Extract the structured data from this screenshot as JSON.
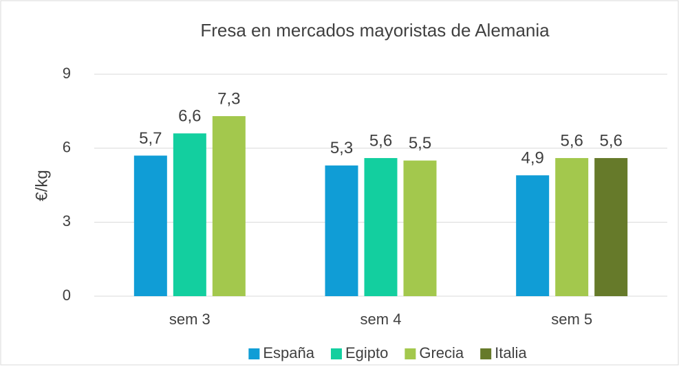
{
  "chart_data": {
    "type": "bar",
    "title": "Fresa en mercados mayoristas de Alemania",
    "y_label": "€/kg",
    "categories": [
      "sem 3",
      "sem 4",
      "sem 5"
    ],
    "series": [
      {
        "name": "España",
        "color": "#109dd6",
        "values": [
          5.7,
          5.3,
          4.9
        ],
        "value_labels": [
          "5,7",
          "5,3",
          "4,9"
        ]
      },
      {
        "name": "Egipto",
        "color": "#13cf9f",
        "values": [
          6.6,
          5.6,
          null
        ],
        "value_labels": [
          "6,6",
          "5,6",
          null
        ]
      },
      {
        "name": "Grecia",
        "color": "#a3c84d",
        "values": [
          7.3,
          5.5,
          5.6
        ],
        "value_labels": [
          "7,3",
          "5,5",
          "5,6"
        ]
      },
      {
        "name": "Italia",
        "color": "#667a2a",
        "values": [
          null,
          null,
          5.6
        ],
        "value_labels": [
          null,
          null,
          "5,6"
        ]
      }
    ],
    "ylim": [
      0,
      9
    ],
    "yticks": [
      0,
      3,
      6,
      9
    ],
    "grid": true,
    "legend": "bottom"
  }
}
